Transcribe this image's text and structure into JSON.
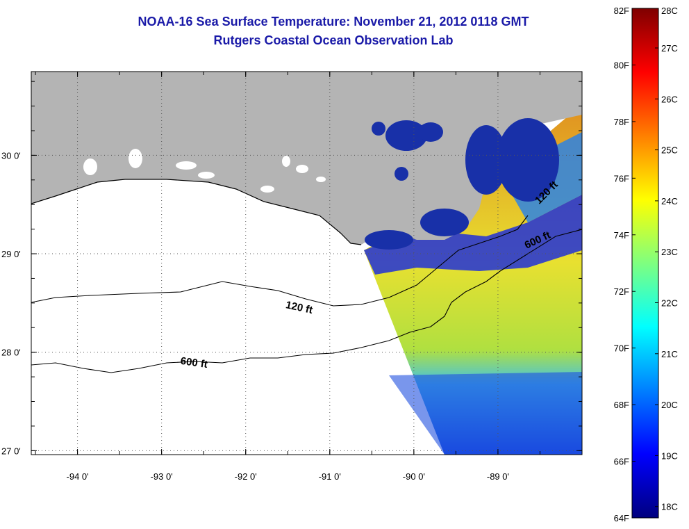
{
  "title": "NOAA-16 Sea Surface Temperature:  November 21, 2012 0118 GMT",
  "subtitle": "Rutgers Coastal Ocean Observation Lab",
  "map": {
    "lon_ticks": [
      {
        "value": -94,
        "label": "-94 0'"
      },
      {
        "value": -93,
        "label": "-93 0'"
      },
      {
        "value": -92,
        "label": "-92 0'"
      },
      {
        "value": -91,
        "label": "-91 0'"
      },
      {
        "value": -90,
        "label": "-90 0'"
      },
      {
        "value": -89,
        "label": "-89 0'"
      }
    ],
    "lat_ticks": [
      {
        "value": 30,
        "label": "30 0'"
      },
      {
        "value": 29,
        "label": "29 0'"
      },
      {
        "value": 28,
        "label": "28 0'"
      },
      {
        "value": 27,
        "label": "27 0'"
      }
    ],
    "lon_range": [
      -94.55,
      -88.0
    ],
    "lat_range": [
      26.96,
      30.85
    ],
    "contour_labels": [
      {
        "text": "120 ft",
        "lon": -91.53,
        "lat": 28.45,
        "angle": 12
      },
      {
        "text": "600 ft",
        "lon": -92.78,
        "lat": 27.88,
        "angle": 8
      },
      {
        "text": "120 ft",
        "lon": -88.51,
        "lat": 29.5,
        "angle": -45
      },
      {
        "text": "600 ft",
        "lon": -88.66,
        "lat": 29.05,
        "angle": -25
      }
    ],
    "colors": {
      "land": "#b4b4b4",
      "ocean_nodata": "#ffffff",
      "coast": "#000000"
    }
  },
  "colorbar": {
    "fahrenheit_labels": [
      "82F",
      "80F",
      "78F",
      "76F",
      "74F",
      "72F",
      "70F",
      "68F",
      "66F",
      "64F"
    ],
    "celsius_labels": [
      "28C",
      "27C",
      "26C",
      "25C",
      "24C",
      "23C",
      "22C",
      "21C",
      "20C",
      "19C",
      "18C"
    ],
    "f_range": [
      64,
      82
    ],
    "c_range": [
      18,
      28
    ],
    "colormap": [
      "#00007f",
      "#0000ff",
      "#007fff",
      "#00ffff",
      "#7fff7f",
      "#ffff00",
      "#ff7f00",
      "#ff0000",
      "#7f0000"
    ]
  }
}
